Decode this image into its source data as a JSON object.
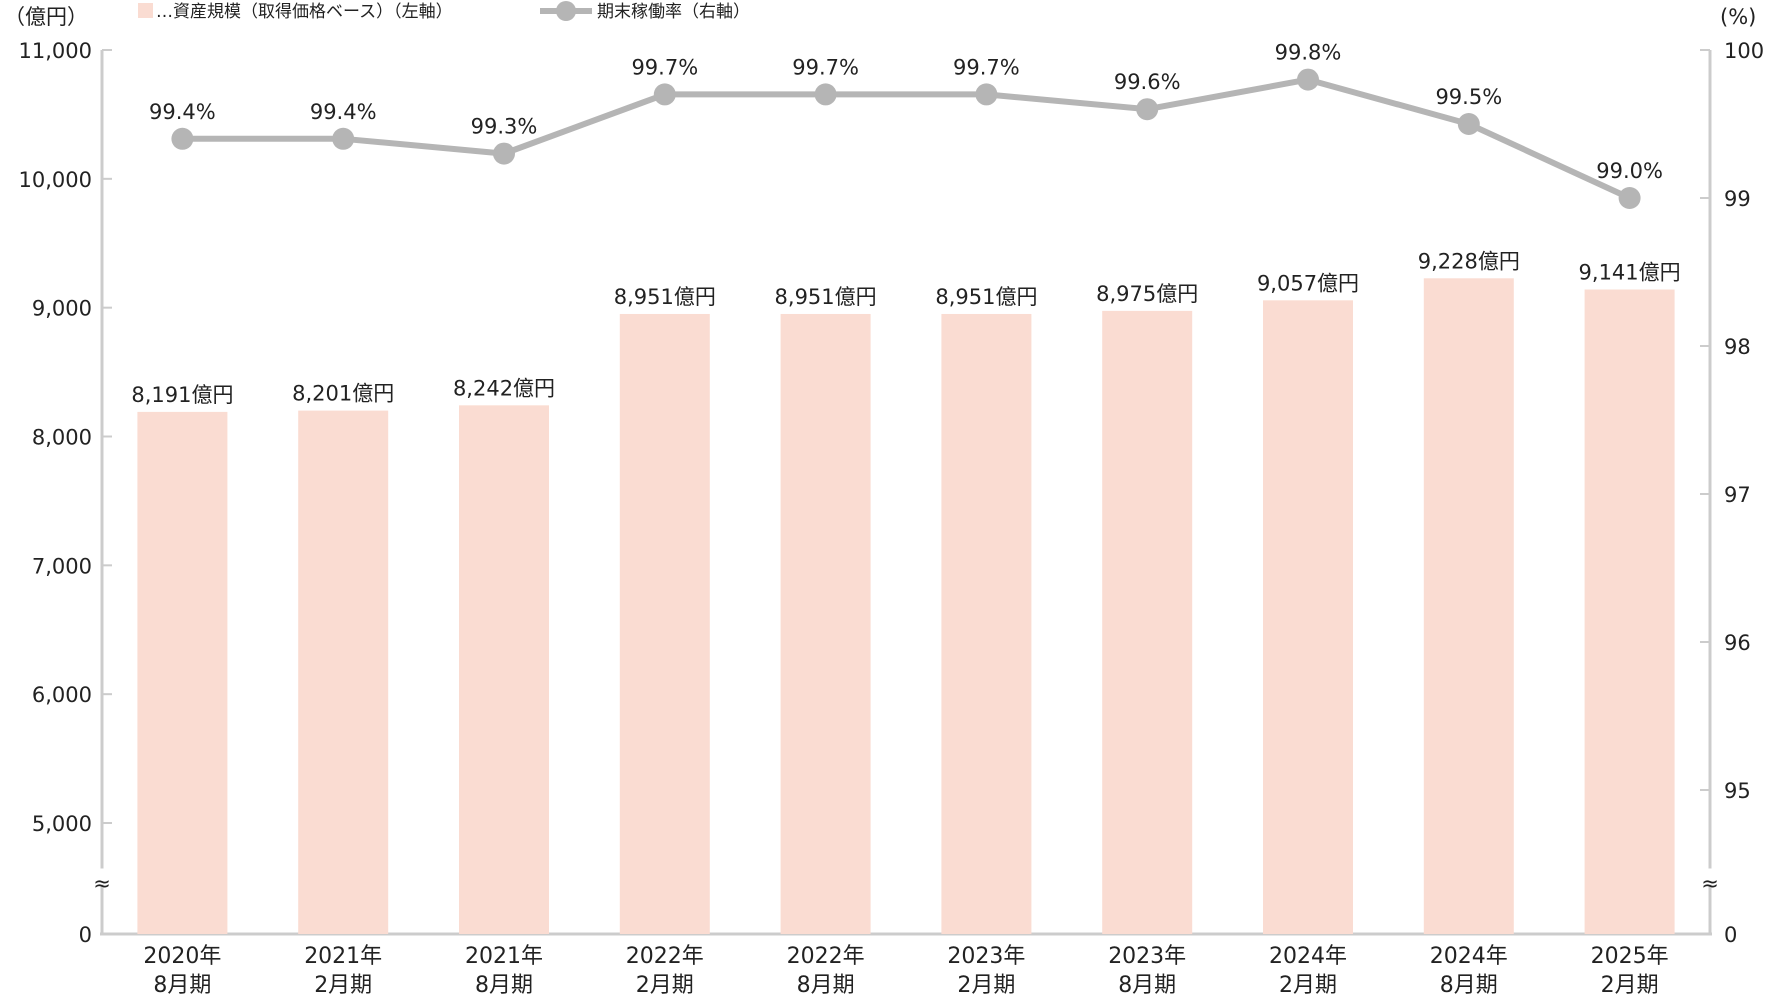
{
  "chart_data": {
    "type": "bar+line",
    "categories": [
      [
        "2020年",
        "8月期"
      ],
      [
        "2021年",
        "2月期"
      ],
      [
        "2021年",
        "8月期"
      ],
      [
        "2022年",
        "2月期"
      ],
      [
        "2022年",
        "8月期"
      ],
      [
        "2023年",
        "2月期"
      ],
      [
        "2023年",
        "8月期"
      ],
      [
        "2024年",
        "2月期"
      ],
      [
        "2024年",
        "8月期"
      ],
      [
        "2025年",
        "2月期"
      ]
    ],
    "series": [
      {
        "name": "資産規模（取得価格ベース）（左軸）",
        "kind": "bar",
        "axis": "left",
        "values": [
          8191,
          8201,
          8242,
          8951,
          8951,
          8951,
          8975,
          9057,
          9228,
          9141
        ],
        "labels": [
          "8,191億円",
          "8,201億円",
          "8,242億円",
          "8,951億円",
          "8,951億円",
          "8,951億円",
          "8,975億円",
          "9,057億円",
          "9,228億円",
          "9,141億円"
        ],
        "color": "#fadcd2"
      },
      {
        "name": "期末稼働率（右軸）",
        "kind": "line",
        "axis": "right",
        "values": [
          99.4,
          99.4,
          99.3,
          99.7,
          99.7,
          99.7,
          99.6,
          99.8,
          99.5,
          99.0
        ],
        "labels": [
          "99.4%",
          "99.4%",
          "99.3%",
          "99.7%",
          "99.7%",
          "99.7%",
          "99.6%",
          "99.8%",
          "99.5%",
          "99.0%"
        ],
        "color": "#b5b5b5"
      }
    ],
    "legend": {
      "placement": "top",
      "bar_text": "…資産規模（取得価格ベース）（左軸）",
      "line_text": "期末稼働率（右軸）"
    },
    "left_axis": {
      "unit": "（億円）",
      "ylim": [
        5000,
        11000
      ],
      "ticks": [
        11000,
        10000,
        9000,
        8000,
        7000,
        6000,
        5000
      ],
      "tick_labels": [
        "11,000",
        "10,000",
        "9,000",
        "8,000",
        "7,000",
        "6,000",
        "5,000"
      ],
      "zero_label": "0",
      "break": true
    },
    "right_axis": {
      "unit": "(%)",
      "ylim": [
        95,
        100
      ],
      "ticks": [
        100,
        99,
        98,
        97,
        96,
        95
      ],
      "tick_labels": [
        "100",
        "99",
        "98",
        "97",
        "96",
        "95"
      ],
      "zero_label": "0",
      "break": true
    },
    "axis_break_symbol": "≈",
    "grid": false
  }
}
